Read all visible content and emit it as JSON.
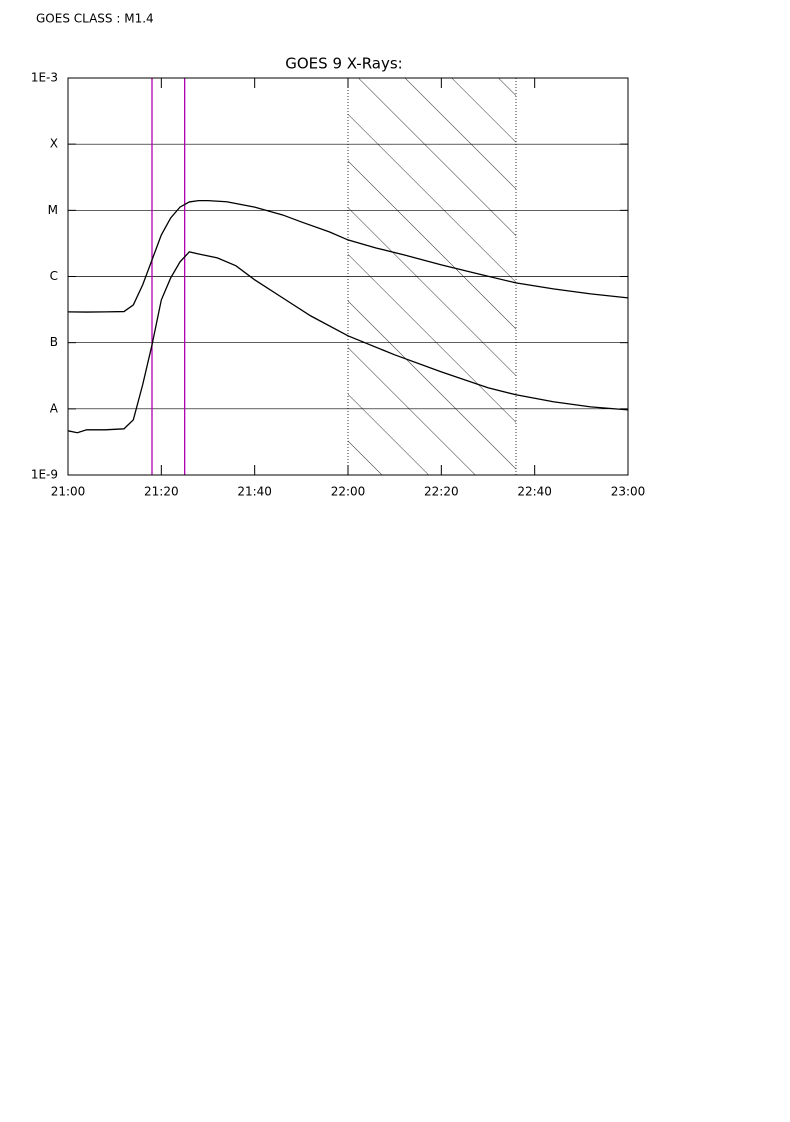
{
  "header": "GOES CLASS : M1.4",
  "chart_data": {
    "type": "line",
    "title": "GOES 9 X-Rays:",
    "log_y": true,
    "grid": true,
    "xlim": [
      "21:00",
      "23:00"
    ],
    "xticks": [
      "21:00",
      "21:20",
      "21:40",
      "22:00",
      "22:20",
      "22:40",
      "23:00"
    ],
    "ylim": [
      1e-09,
      0.001
    ],
    "yticks": [
      {
        "value": 1e-09,
        "label": "1E-9"
      },
      {
        "value": 1e-08,
        "label": "A"
      },
      {
        "value": 1e-07,
        "label": "B"
      },
      {
        "value": 1e-06,
        "label": "C"
      },
      {
        "value": 1e-05,
        "label": "M"
      },
      {
        "value": 0.0001,
        "label": "X"
      },
      {
        "value": 0.001,
        "label": "1E-3"
      }
    ],
    "series": [
      {
        "color": "#000000",
        "x": [
          "21:00",
          "21:04",
          "21:08",
          "21:12",
          "21:14",
          "21:16",
          "21:18",
          "21:20",
          "21:22",
          "21:24",
          "21:26",
          "21:28",
          "21:30",
          "21:34",
          "21:40",
          "21:46",
          "21:50",
          "21:56",
          "22:00",
          "22:06",
          "22:12",
          "22:20",
          "22:28",
          "22:36",
          "22:44",
          "22:52",
          "23:00"
        ],
        "values": [
          2.92e-07,
          2.9e-07,
          2.92e-07,
          2.95e-07,
          3.72e-07,
          7.47e-07,
          1.78e-06,
          4.25e-06,
          7.67e-06,
          1.12e-05,
          1.34e-05,
          1.4e-05,
          1.4e-05,
          1.35e-05,
          1.12e-05,
          8.52e-06,
          6.68e-06,
          4.72e-06,
          3.57e-06,
          2.7e-06,
          2.12e-06,
          1.5e-06,
          1.09e-06,
          8e-07,
          6.5e-07,
          5.46e-07,
          4.75e-07
        ]
      },
      {
        "color": "#000000",
        "x": [
          "21:00",
          "21:02",
          "21:04",
          "21:08",
          "21:12",
          "21:14",
          "21:16",
          "21:18",
          "21:20",
          "21:22",
          "21:24",
          "21:26",
          "21:28",
          "21:32",
          "21:36",
          "21:40",
          "21:46",
          "21:52",
          "22:00",
          "22:10",
          "22:20",
          "22:30",
          "22:36",
          "22:44",
          "22:52",
          "23:00"
        ],
        "values": [
          4.66e-09,
          4.35e-09,
          4.82e-09,
          4.82e-09,
          4.99e-09,
          6.82e-09,
          2.31e-08,
          9.27e-08,
          4.43e-07,
          9.5e-07,
          1.66e-06,
          2.36e-06,
          2.19e-06,
          1.91e-06,
          1.45e-06,
          8.9e-07,
          4.75e-07,
          2.54e-07,
          1.27e-07,
          6.55e-08,
          3.62e-08,
          2.08e-08,
          1.63e-08,
          1.28e-08,
          1.07e-08,
          9.65e-09
        ]
      }
    ],
    "vlines": [
      "21:18",
      "21:25"
    ],
    "vline_color": "#b000b0",
    "shaded_range": [
      "22:00",
      "22:36"
    ]
  }
}
